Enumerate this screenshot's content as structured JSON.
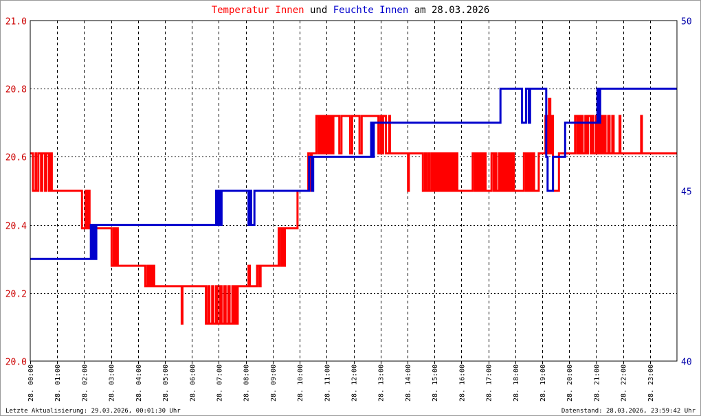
{
  "title": {
    "part1": "Temperatur Innen",
    "part2": " und ",
    "part3": "Feuchte Innen",
    "part4": " am 28.03.2026"
  },
  "footer": {
    "left": "Letzte Aktualisierung: 29.03.2026, 00:01:30 Uhr",
    "right": "Datenstand: 28.03.2026, 23:59:42 Uhr"
  },
  "colors": {
    "temperature": "#ff0000",
    "humidity": "#0000cc",
    "left_axis": "#cc0000",
    "right_axis": "#0000aa",
    "grid": "#000000"
  },
  "chart_data": {
    "type": "line",
    "x_unit": "hours",
    "xlim": [
      0,
      24
    ],
    "x_tick_labels": [
      "28. 00:00",
      "28. 01:00",
      "28. 02:00",
      "28. 03:00",
      "28. 04:00",
      "28. 05:00",
      "28. 06:00",
      "28. 07:00",
      "28. 08:00",
      "28. 09:00",
      "28. 10:00",
      "28. 11:00",
      "28. 12:00",
      "28. 13:00",
      "28. 14:00",
      "28. 15:00",
      "28. 16:00",
      "28. 17:00",
      "28. 18:00",
      "28. 19:00",
      "28. 20:00",
      "28. 21:00",
      "28. 22:00",
      "28. 23:00"
    ],
    "y_left": {
      "lim": [
        20.0,
        21.0
      ],
      "ticks": [
        "20.0",
        "20.2",
        "20.4",
        "20.6",
        "20.8",
        "21.0"
      ]
    },
    "y_right": {
      "lim": [
        40,
        50
      ],
      "ticks": [
        "40",
        "45",
        "50"
      ]
    },
    "grid": true,
    "series": [
      {
        "name": "Temperatur Innen",
        "axis": "left",
        "points": [
          [
            0.0,
            20.61
          ],
          [
            0.1,
            20.5
          ],
          [
            0.2,
            20.61
          ],
          [
            0.22,
            20.5
          ],
          [
            0.3,
            20.61
          ],
          [
            0.4,
            20.5
          ],
          [
            0.45,
            20.61
          ],
          [
            0.55,
            20.5
          ],
          [
            0.6,
            20.61
          ],
          [
            0.7,
            20.5
          ],
          [
            0.75,
            20.61
          ],
          [
            0.8,
            20.5
          ],
          [
            1.9,
            20.5
          ],
          [
            1.92,
            20.39
          ],
          [
            2.0,
            20.39
          ],
          [
            2.05,
            20.5
          ],
          [
            2.1,
            20.39
          ],
          [
            2.15,
            20.5
          ],
          [
            2.2,
            20.39
          ],
          [
            3.0,
            20.39
          ],
          [
            3.02,
            20.28
          ],
          [
            3.1,
            20.39
          ],
          [
            3.15,
            20.28
          ],
          [
            3.2,
            20.39
          ],
          [
            3.25,
            20.28
          ],
          [
            4.25,
            20.28
          ],
          [
            4.27,
            20.22
          ],
          [
            4.35,
            20.28
          ],
          [
            4.4,
            20.22
          ],
          [
            4.45,
            20.28
          ],
          [
            4.5,
            20.22
          ],
          [
            4.55,
            20.28
          ],
          [
            4.6,
            20.22
          ],
          [
            5.6,
            20.22
          ],
          [
            5.62,
            20.11
          ],
          [
            5.65,
            20.22
          ],
          [
            6.5,
            20.22
          ],
          [
            6.52,
            20.11
          ],
          [
            6.6,
            20.22
          ],
          [
            6.65,
            20.11
          ],
          [
            6.75,
            20.22
          ],
          [
            6.8,
            20.11
          ],
          [
            6.9,
            20.22
          ],
          [
            6.95,
            20.11
          ],
          [
            7.05,
            20.22
          ],
          [
            7.1,
            20.11
          ],
          [
            7.2,
            20.22
          ],
          [
            7.25,
            20.11
          ],
          [
            7.35,
            20.22
          ],
          [
            7.4,
            20.11
          ],
          [
            7.5,
            20.22
          ],
          [
            7.55,
            20.11
          ],
          [
            7.6,
            20.22
          ],
          [
            7.65,
            20.11
          ],
          [
            7.7,
            20.22
          ],
          [
            8.05,
            20.22
          ],
          [
            8.1,
            20.28
          ],
          [
            8.15,
            20.22
          ],
          [
            8.4,
            20.22
          ],
          [
            8.42,
            20.28
          ],
          [
            8.5,
            20.22
          ],
          [
            8.55,
            20.28
          ],
          [
            9.2,
            20.28
          ],
          [
            9.22,
            20.39
          ],
          [
            9.3,
            20.28
          ],
          [
            9.35,
            20.39
          ],
          [
            9.4,
            20.28
          ],
          [
            9.45,
            20.39
          ],
          [
            9.9,
            20.39
          ],
          [
            9.92,
            20.5
          ],
          [
            10.3,
            20.5
          ],
          [
            10.32,
            20.61
          ],
          [
            10.4,
            20.5
          ],
          [
            10.45,
            20.61
          ],
          [
            10.6,
            20.61
          ],
          [
            10.62,
            20.72
          ],
          [
            10.7,
            20.61
          ],
          [
            10.75,
            20.72
          ],
          [
            10.8,
            20.61
          ],
          [
            10.85,
            20.72
          ],
          [
            10.9,
            20.61
          ],
          [
            10.95,
            20.72
          ],
          [
            11.0,
            20.61
          ],
          [
            11.05,
            20.72
          ],
          [
            11.1,
            20.61
          ],
          [
            11.15,
            20.72
          ],
          [
            11.2,
            20.61
          ],
          [
            11.25,
            20.72
          ],
          [
            11.45,
            20.72
          ],
          [
            11.47,
            20.61
          ],
          [
            11.55,
            20.72
          ],
          [
            11.85,
            20.72
          ],
          [
            11.87,
            20.61
          ],
          [
            11.95,
            20.72
          ],
          [
            12.2,
            20.72
          ],
          [
            12.22,
            20.61
          ],
          [
            12.3,
            20.72
          ],
          [
            12.9,
            20.72
          ],
          [
            12.92,
            20.61
          ],
          [
            13.0,
            20.72
          ],
          [
            13.05,
            20.61
          ],
          [
            13.1,
            20.72
          ],
          [
            13.2,
            20.61
          ],
          [
            13.3,
            20.61
          ],
          [
            13.32,
            20.72
          ],
          [
            13.35,
            20.61
          ],
          [
            14.0,
            20.61
          ],
          [
            14.02,
            20.5
          ],
          [
            14.05,
            20.61
          ],
          [
            14.55,
            20.61
          ],
          [
            14.57,
            20.5
          ],
          [
            14.65,
            20.61
          ],
          [
            14.7,
            20.5
          ],
          [
            14.78,
            20.61
          ],
          [
            14.82,
            20.5
          ],
          [
            14.9,
            20.61
          ],
          [
            14.95,
            20.5
          ],
          [
            15.0,
            20.61
          ],
          [
            15.05,
            20.5
          ],
          [
            15.1,
            20.61
          ],
          [
            15.15,
            20.5
          ],
          [
            15.2,
            20.61
          ],
          [
            15.25,
            20.5
          ],
          [
            15.3,
            20.61
          ],
          [
            15.35,
            20.5
          ],
          [
            15.4,
            20.61
          ],
          [
            15.45,
            20.5
          ],
          [
            15.5,
            20.61
          ],
          [
            15.55,
            20.5
          ],
          [
            15.6,
            20.61
          ],
          [
            15.65,
            20.5
          ],
          [
            15.7,
            20.61
          ],
          [
            15.75,
            20.5
          ],
          [
            15.8,
            20.61
          ],
          [
            15.85,
            20.5
          ],
          [
            16.4,
            20.5
          ],
          [
            16.42,
            20.61
          ],
          [
            16.5,
            20.5
          ],
          [
            16.55,
            20.61
          ],
          [
            16.6,
            20.5
          ],
          [
            16.65,
            20.61
          ],
          [
            16.7,
            20.5
          ],
          [
            16.75,
            20.61
          ],
          [
            16.8,
            20.5
          ],
          [
            16.85,
            20.61
          ],
          [
            16.9,
            20.5
          ],
          [
            17.1,
            20.5
          ],
          [
            17.12,
            20.61
          ],
          [
            17.2,
            20.5
          ],
          [
            17.25,
            20.61
          ],
          [
            17.3,
            20.5
          ],
          [
            17.4,
            20.61
          ],
          [
            17.45,
            20.5
          ],
          [
            17.5,
            20.61
          ],
          [
            17.55,
            20.5
          ],
          [
            17.6,
            20.61
          ],
          [
            17.65,
            20.5
          ],
          [
            17.7,
            20.61
          ],
          [
            17.75,
            20.5
          ],
          [
            17.8,
            20.61
          ],
          [
            17.85,
            20.5
          ],
          [
            17.9,
            20.61
          ],
          [
            17.95,
            20.5
          ],
          [
            18.3,
            20.5
          ],
          [
            18.32,
            20.61
          ],
          [
            18.4,
            20.5
          ],
          [
            18.45,
            20.61
          ],
          [
            18.5,
            20.5
          ],
          [
            18.55,
            20.61
          ],
          [
            18.6,
            20.5
          ],
          [
            18.65,
            20.61
          ],
          [
            18.7,
            20.5
          ],
          [
            18.85,
            20.5
          ],
          [
            18.87,
            20.61
          ],
          [
            19.1,
            20.61
          ],
          [
            19.12,
            20.72
          ],
          [
            19.2,
            20.61
          ],
          [
            19.25,
            20.77
          ],
          [
            19.3,
            20.61
          ],
          [
            19.35,
            20.72
          ],
          [
            19.4,
            20.5
          ],
          [
            19.6,
            20.5
          ],
          [
            19.62,
            20.61
          ],
          [
            20.2,
            20.61
          ],
          [
            20.22,
            20.72
          ],
          [
            20.3,
            20.61
          ],
          [
            20.35,
            20.72
          ],
          [
            20.4,
            20.61
          ],
          [
            20.45,
            20.72
          ],
          [
            20.5,
            20.61
          ],
          [
            20.6,
            20.72
          ],
          [
            20.65,
            20.61
          ],
          [
            20.7,
            20.72
          ],
          [
            20.8,
            20.61
          ],
          [
            20.85,
            20.72
          ],
          [
            20.9,
            20.61
          ],
          [
            21.0,
            20.72
          ],
          [
            21.05,
            20.61
          ],
          [
            21.1,
            20.72
          ],
          [
            21.15,
            20.61
          ],
          [
            21.2,
            20.72
          ],
          [
            21.25,
            20.61
          ],
          [
            21.3,
            20.72
          ],
          [
            21.35,
            20.61
          ],
          [
            21.45,
            20.72
          ],
          [
            21.5,
            20.61
          ],
          [
            21.6,
            20.72
          ],
          [
            21.65,
            20.61
          ],
          [
            21.85,
            20.61
          ],
          [
            21.87,
            20.72
          ],
          [
            21.9,
            20.61
          ],
          [
            22.65,
            20.61
          ],
          [
            22.67,
            20.72
          ],
          [
            22.7,
            20.61
          ],
          [
            24.0,
            20.61
          ]
        ]
      },
      {
        "name": "Feuchte Innen",
        "axis": "right",
        "points": [
          [
            0.0,
            43
          ],
          [
            2.2,
            43
          ],
          [
            2.25,
            44
          ],
          [
            2.3,
            43
          ],
          [
            2.35,
            44
          ],
          [
            2.4,
            43
          ],
          [
            2.45,
            44
          ],
          [
            6.85,
            44
          ],
          [
            6.9,
            45
          ],
          [
            6.95,
            44
          ],
          [
            7.0,
            45
          ],
          [
            7.05,
            44
          ],
          [
            7.1,
            45
          ],
          [
            8.05,
            45
          ],
          [
            8.1,
            44
          ],
          [
            8.15,
            45
          ],
          [
            8.2,
            44
          ],
          [
            8.3,
            44
          ],
          [
            8.32,
            45
          ],
          [
            9.8,
            45
          ],
          [
            10.3,
            45
          ],
          [
            10.35,
            46
          ],
          [
            10.45,
            45
          ],
          [
            10.5,
            46
          ],
          [
            12.6,
            46
          ],
          [
            12.65,
            47
          ],
          [
            12.7,
            46
          ],
          [
            12.75,
            47
          ],
          [
            17.4,
            47
          ],
          [
            17.45,
            48
          ],
          [
            18.2,
            48
          ],
          [
            18.25,
            47
          ],
          [
            18.35,
            47
          ],
          [
            18.4,
            48
          ],
          [
            18.5,
            47
          ],
          [
            18.55,
            48
          ],
          [
            19.1,
            48
          ],
          [
            19.15,
            46
          ],
          [
            19.2,
            45
          ],
          [
            19.3,
            45
          ],
          [
            19.4,
            46
          ],
          [
            19.5,
            46
          ],
          [
            19.8,
            46
          ],
          [
            19.85,
            47
          ],
          [
            20.0,
            47
          ],
          [
            21.0,
            47
          ],
          [
            21.05,
            48
          ],
          [
            21.1,
            47
          ],
          [
            21.15,
            48
          ],
          [
            24.0,
            48
          ]
        ]
      }
    ]
  }
}
